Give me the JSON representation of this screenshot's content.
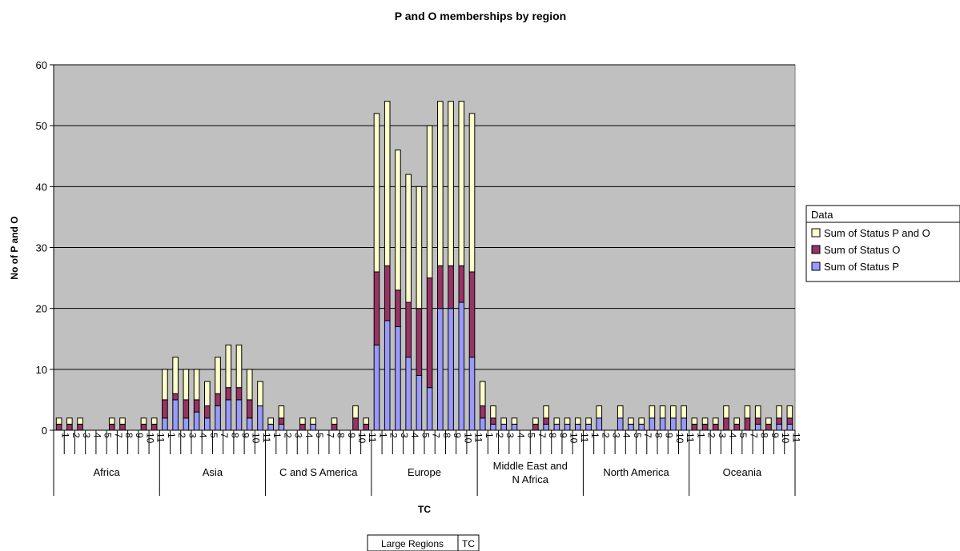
{
  "colors": {
    "plot_bg": "#c0c0c0",
    "status_p": "#9999ff",
    "status_o": "#993366",
    "status_p_and_o": "#ffffcc",
    "grid": "#000000"
  },
  "field_buttons": {
    "large_regions": "Large Regions",
    "tc": "TC"
  },
  "chart_data": {
    "type": "bar",
    "stacked": true,
    "title": "P and O memberships  by region",
    "xlabel": "TC",
    "ylabel": "No of P and O",
    "ylim": [
      0,
      60
    ],
    "yticks": [
      0,
      10,
      20,
      30,
      40,
      50,
      60
    ],
    "grid": true,
    "legend": {
      "title": "Data",
      "position": "right",
      "entries": [
        "Sum of Status P and O",
        "Sum of Status O",
        "Sum of Status P"
      ]
    },
    "groups": [
      {
        "name": "Africa",
        "tcs": [
          "1",
          "2",
          "3",
          "4",
          "5",
          "7",
          "8",
          "9",
          "10",
          "11"
        ]
      },
      {
        "name": "Asia",
        "tcs": [
          "1",
          "2",
          "3",
          "4",
          "5",
          "7",
          "8",
          "9",
          "10",
          "11"
        ]
      },
      {
        "name": "C and S America",
        "tcs": [
          "1",
          "2",
          "3",
          "4",
          "5",
          "7",
          "8",
          "9",
          "10",
          "11"
        ]
      },
      {
        "name": "Europe",
        "tcs": [
          "1",
          "2",
          "3",
          "4",
          "5",
          "7",
          "8",
          "9",
          "10",
          "11"
        ]
      },
      {
        "name": "Middle East and\nN Africa",
        "tcs": [
          "1",
          "2",
          "3",
          "4",
          "5",
          "7",
          "8",
          "9",
          "10",
          "11"
        ]
      },
      {
        "name": "North America",
        "tcs": [
          "1",
          "2",
          "3",
          "4",
          "5",
          "7",
          "8",
          "9",
          "10",
          "11"
        ]
      },
      {
        "name": "Oceania",
        "tcs": [
          "1",
          "2",
          "3",
          "4",
          "5",
          "7",
          "8",
          "9",
          "10",
          "11"
        ]
      }
    ],
    "series": [
      {
        "name": "Sum of Status P",
        "color": "#9999ff",
        "values": [
          0,
          0,
          0,
          0,
          0,
          0,
          0,
          0,
          0,
          0,
          2,
          5,
          2,
          3,
          2,
          4,
          5,
          5,
          2,
          4,
          1,
          1,
          0,
          0,
          1,
          0,
          0,
          0,
          0,
          0,
          14,
          18,
          17,
          12,
          9,
          7,
          20,
          20,
          21,
          12,
          2,
          1,
          1,
          1,
          0,
          0,
          1,
          1,
          1,
          1,
          1,
          2,
          0,
          2,
          1,
          1,
          2,
          2,
          2,
          2,
          0,
          0,
          0,
          0,
          0,
          0,
          1,
          0,
          1,
          1
        ]
      },
      {
        "name": "Sum of Status O",
        "color": "#993366",
        "values": [
          1,
          1,
          1,
          0,
          0,
          1,
          1,
          0,
          1,
          1,
          3,
          1,
          3,
          2,
          2,
          2,
          2,
          2,
          3,
          0,
          0,
          1,
          0,
          1,
          0,
          0,
          1,
          0,
          2,
          1,
          12,
          9,
          6,
          9,
          11,
          18,
          7,
          7,
          6,
          14,
          2,
          1,
          0,
          0,
          0,
          1,
          1,
          0,
          0,
          0,
          0,
          0,
          0,
          0,
          0,
          0,
          0,
          0,
          0,
          0,
          1,
          1,
          1,
          2,
          1,
          2,
          1,
          1,
          1,
          1
        ]
      },
      {
        "name": "Sum of Status P and O",
        "color": "#ffffcc",
        "values": [
          1,
          1,
          1,
          0,
          0,
          1,
          1,
          0,
          1,
          1,
          5,
          6,
          5,
          5,
          4,
          6,
          7,
          7,
          5,
          4,
          1,
          2,
          0,
          1,
          1,
          0,
          1,
          0,
          2,
          1,
          26,
          27,
          23,
          21,
          20,
          25,
          27,
          27,
          27,
          26,
          4,
          2,
          1,
          1,
          0,
          1,
          2,
          1,
          1,
          1,
          1,
          2,
          0,
          2,
          1,
          1,
          2,
          2,
          2,
          2,
          1,
          1,
          1,
          2,
          1,
          2,
          2,
          1,
          2,
          2
        ]
      }
    ]
  }
}
